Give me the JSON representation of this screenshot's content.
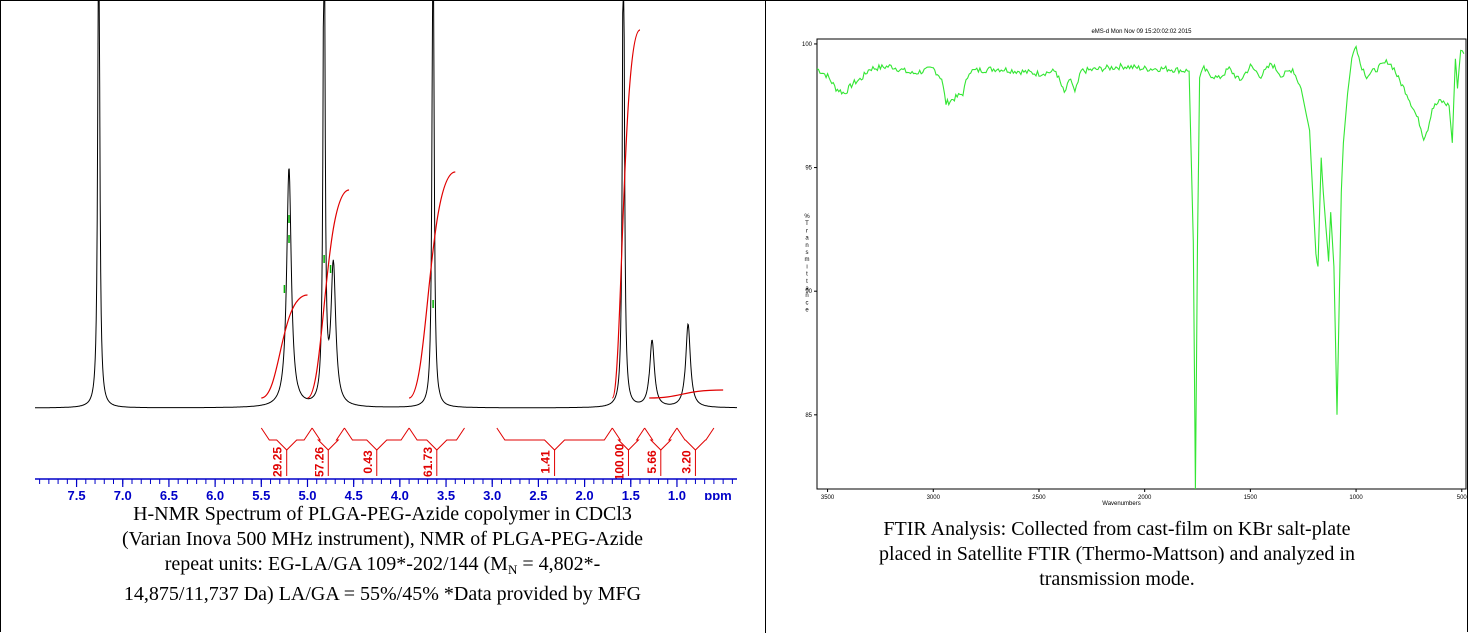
{
  "nmr_caption": {
    "line1": "H-NMR Spectrum of PLGA-PEG-Azide copolymer in CDCl3",
    "line2": "(Varian Inova 500 MHz instrument), NMR of PLGA-PEG-Azide",
    "line3": "repeat units: EG-LA/GA 109*-202/144 (M",
    "line3_sub": "N",
    "line3_end": " = 4,802*-",
    "line4": "14,875/11,737 Da) LA/GA = 55%/45% *Data provided by MFG"
  },
  "ftir_caption": {
    "line1": "FTIR Analysis: Collected from cast-film on KBr salt-plate",
    "line2": "placed in Satellite FTIR (Thermo-Mattson) and analyzed in",
    "line3": "transmission mode."
  },
  "colors": {
    "nmr_spectrum": "#000000",
    "nmr_integral": "#e00000",
    "nmr_peak_marker": "#00b000",
    "nmr_axis": "#0000c8",
    "ftir_trace": "#33e633"
  },
  "chart_data": [
    {
      "type": "line",
      "name": "H-NMR spectrum",
      "xlabel": "ppm",
      "x_ticks": [
        "7.5",
        "7.0",
        "6.5",
        "6.0",
        "5.5",
        "5.0",
        "4.5",
        "4.0",
        "3.5",
        "3.0",
        "2.5",
        "2.0",
        "1.5",
        "1.0"
      ],
      "xlim": [
        7.95,
        0.35
      ],
      "peaks": [
        {
          "ppm": 7.26,
          "height": 1.0
        },
        {
          "ppm": 5.2,
          "height": 0.43
        },
        {
          "ppm": 4.82,
          "height": 1.0
        },
        {
          "ppm": 4.72,
          "height": 0.25
        },
        {
          "ppm": 3.64,
          "height": 1.0
        },
        {
          "ppm": 1.58,
          "height": 1.0
        },
        {
          "ppm": 1.27,
          "height": 0.12
        },
        {
          "ppm": 0.88,
          "height": 0.15
        }
      ],
      "integrals": [
        {
          "from": 5.5,
          "to": 4.95,
          "label": "29.25"
        },
        {
          "from": 4.95,
          "to": 4.6,
          "label": "57.26"
        },
        {
          "from": 4.6,
          "to": 3.9,
          "label": "0.43"
        },
        {
          "from": 3.9,
          "to": 3.3,
          "label": "61.73"
        },
        {
          "from": 2.95,
          "to": 1.7,
          "label": "1.41"
        },
        {
          "from": 1.7,
          "to": 1.35,
          "label": "100.00"
        },
        {
          "from": 1.35,
          "to": 1.0,
          "label": "5.66"
        },
        {
          "from": 1.0,
          "to": 0.6,
          "label": "3.20"
        }
      ]
    },
    {
      "type": "line",
      "name": "FTIR spectrum",
      "title": "eMS-d   Mon Nov 09 15:20:02:02 2015",
      "xlabel": "Wavenumbers",
      "ylabel": "% Transmittance",
      "xlim": [
        3550,
        480
      ],
      "ylim": [
        82,
        100.2
      ],
      "x_ticks": [
        3500,
        3000,
        2500,
        2000,
        1500,
        1000,
        500
      ],
      "y_ticks": [
        85,
        90,
        95,
        100
      ],
      "points": [
        [
          3550,
          99.0
        ],
        [
          3500,
          98.7
        ],
        [
          3460,
          98.2
        ],
        [
          3420,
          98.0
        ],
        [
          3380,
          98.4
        ],
        [
          3340,
          98.6
        ],
        [
          3300,
          99.0
        ],
        [
          3200,
          99.1
        ],
        [
          3100,
          98.8
        ],
        [
          3000,
          99.0
        ],
        [
          2960,
          98.6
        ],
        [
          2940,
          97.6
        ],
        [
          2900,
          97.8
        ],
        [
          2860,
          98.0
        ],
        [
          2830,
          98.9
        ],
        [
          2700,
          99.0
        ],
        [
          2600,
          98.9
        ],
        [
          2500,
          98.8
        ],
        [
          2420,
          98.9
        ],
        [
          2380,
          98.0
        ],
        [
          2350,
          98.6
        ],
        [
          2330,
          98.0
        ],
        [
          2300,
          98.9
        ],
        [
          2200,
          99.0
        ],
        [
          2100,
          99.1
        ],
        [
          2000,
          99.0
        ],
        [
          1900,
          99.0
        ],
        [
          1790,
          98.9
        ],
        [
          1770,
          92.0
        ],
        [
          1760,
          82.0
        ],
        [
          1750,
          92.0
        ],
        [
          1740,
          98.7
        ],
        [
          1720,
          99.0
        ],
        [
          1700,
          98.8
        ],
        [
          1650,
          98.6
        ],
        [
          1600,
          99.0
        ],
        [
          1550,
          98.5
        ],
        [
          1500,
          99.1
        ],
        [
          1450,
          98.7
        ],
        [
          1400,
          99.2
        ],
        [
          1350,
          98.7
        ],
        [
          1300,
          99.0
        ],
        [
          1260,
          98.2
        ],
        [
          1220,
          96.5
        ],
        [
          1190,
          91.5
        ],
        [
          1180,
          91.0
        ],
        [
          1165,
          95.4
        ],
        [
          1155,
          94.0
        ],
        [
          1130,
          91.2
        ],
        [
          1120,
          93.2
        ],
        [
          1105,
          91.0
        ],
        [
          1090,
          85.0
        ],
        [
          1070,
          94.0
        ],
        [
          1060,
          96.0
        ],
        [
          1040,
          98.0
        ],
        [
          1020,
          99.4
        ],
        [
          1000,
          100.0
        ],
        [
          980,
          99.2
        ],
        [
          950,
          98.7
        ],
        [
          900,
          99.0
        ],
        [
          850,
          99.3
        ],
        [
          820,
          99.0
        ],
        [
          800,
          98.6
        ],
        [
          760,
          98.0
        ],
        [
          720,
          97.2
        ],
        [
          700,
          96.8
        ],
        [
          680,
          96.2
        ],
        [
          660,
          96.6
        ],
        [
          640,
          97.4
        ],
        [
          600,
          97.7
        ],
        [
          560,
          97.5
        ],
        [
          545,
          96.0
        ],
        [
          530,
          99.4
        ],
        [
          520,
          98.2
        ],
        [
          505,
          99.8
        ],
        [
          490,
          99.6
        ]
      ]
    }
  ]
}
